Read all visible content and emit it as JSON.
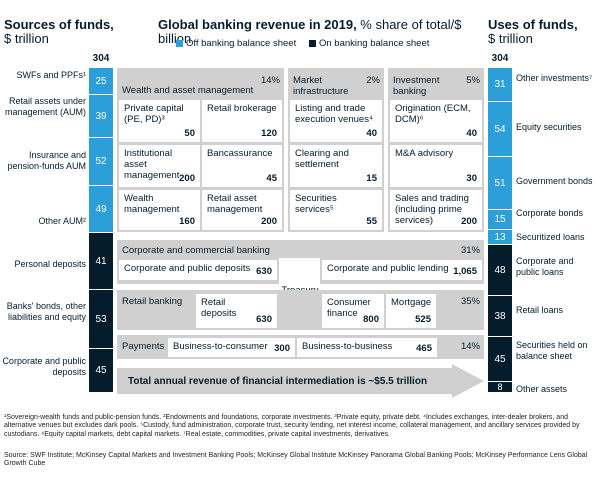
{
  "header": {
    "left_title_bold": "Sources of funds,",
    "left_title_unit": "$ trillion",
    "center_title_bold": "Global banking revenue in 2019,",
    "center_title_rest": " % share of total/$ billion",
    "right_title_bold": "Uses of funds,",
    "right_title_unit": "$ trillion"
  },
  "legend": {
    "off_label": "Off banking balance sheet",
    "on_label": "On banking balance sheet",
    "off_color": "#2c9fd8",
    "on_color": "#051c2c"
  },
  "sources": {
    "total": "304",
    "items": [
      {
        "label": "SWFs and PPFs¹",
        "value": "25",
        "type": "off"
      },
      {
        "label": "Retail assets under management (AUM)",
        "value": "39",
        "type": "off"
      },
      {
        "label": "Insurance and pension-funds AUM",
        "value": "52",
        "type": "off"
      },
      {
        "label": "Other AUM²",
        "value": "49",
        "type": "off"
      },
      {
        "label": "Personal deposits",
        "value": "41",
        "type": "on"
      },
      {
        "label": "Banks' bonds, other liabilities and equity",
        "value": "53",
        "type": "on"
      },
      {
        "label": "Corporate and public deposits",
        "value": "45",
        "type": "on"
      }
    ]
  },
  "uses": {
    "total": "304",
    "items": [
      {
        "label": "Other investments⁷",
        "value": "31",
        "type": "off"
      },
      {
        "label": "Equity securities",
        "value": "54",
        "type": "off"
      },
      {
        "label": "Government bonds",
        "value": "51",
        "type": "off"
      },
      {
        "label": "Corporate bonds",
        "value": "15",
        "type": "off"
      },
      {
        "label": "Securitized loans",
        "value": "13",
        "type": "off"
      },
      {
        "label": "Corporate and public loans",
        "value": "48",
        "type": "on"
      },
      {
        "label": "Retail loans",
        "value": "38",
        "type": "on"
      },
      {
        "label": "Securities held on balance sheet",
        "value": "45",
        "type": "on"
      },
      {
        "label": "Other assets",
        "value": "8",
        "type": "on"
      }
    ]
  },
  "wam": {
    "title": "Wealth and asset management",
    "pct": "14%",
    "cards": [
      {
        "label": "Private capital (PE, PD)³",
        "value": "50"
      },
      {
        "label": "Retail brokerage",
        "value": "120"
      },
      {
        "label": "Institutional asset management",
        "value": "200"
      },
      {
        "label": "Bancassurance",
        "value": "45"
      },
      {
        "label": "Wealth management",
        "value": "160"
      },
      {
        "label": "Retail asset management",
        "value": "200"
      }
    ]
  },
  "mi": {
    "title": "Market infrastructure",
    "pct": "2%",
    "cards": [
      {
        "label": "Listing and trade execution venues⁴",
        "value": "40"
      },
      {
        "label": "Clearing and settlement",
        "value": "15"
      },
      {
        "label": "Securities services⁵",
        "value": "55"
      }
    ]
  },
  "ib": {
    "title": "Investment banking",
    "pct": "5%",
    "cards": [
      {
        "label": "Origination (ECM, DCM)⁶",
        "value": "40"
      },
      {
        "label": "M&A advisory",
        "value": "30"
      },
      {
        "label": "Sales and trading (including prime services)",
        "value": "200"
      }
    ]
  },
  "ccb": {
    "title": "Corporate and commercial banking",
    "pct": "31%",
    "deposits_label": "Corporate and public deposits",
    "deposits_value": "630",
    "lending_label": "Corporate and public lending",
    "lending_value": "1,065"
  },
  "treasury": "Treasury",
  "rb": {
    "title": "Retail banking",
    "pct": "35%",
    "deposits_label": "Retail deposits",
    "deposits_value": "630",
    "cf_label": "Consumer finance",
    "cf_value": "800",
    "mortgage_label": "Mortgage",
    "mortgage_value": "525"
  },
  "payments": {
    "title": "Payments",
    "pct": "14%",
    "b2c_label": "Business-to-consumer",
    "b2c_value": "300",
    "b2b_label": "Business-to-business",
    "b2b_value": "465"
  },
  "arrow_text": "Total annual revenue of financial intermediation is ~$5.5 trillion",
  "footnotes": [
    "¹Sovereign-wealth funds and public-pension funds. ²Endowments and foundations, corporate investments. ³Private equity, private debt. ⁴Includes exchanges, inter-dealer brokers, and alternative venues but excludes dark pools. ⁵Custody, fund administration, corporate trust, security lending, net interest income, collateral management, and ancillary services provided by custodians. ⁶Equity capital markets, debt capital markets. ⁷Real estate, commodities, private capital investments, derivatives.",
    "Source: SWF Institute; McKinsey Capital Markets and Investment Banking Pools; McKinsey Global Institute McKinsey Panorama Global Banking Pools; McKinsey Performance Lens Global Growth Cube"
  ]
}
